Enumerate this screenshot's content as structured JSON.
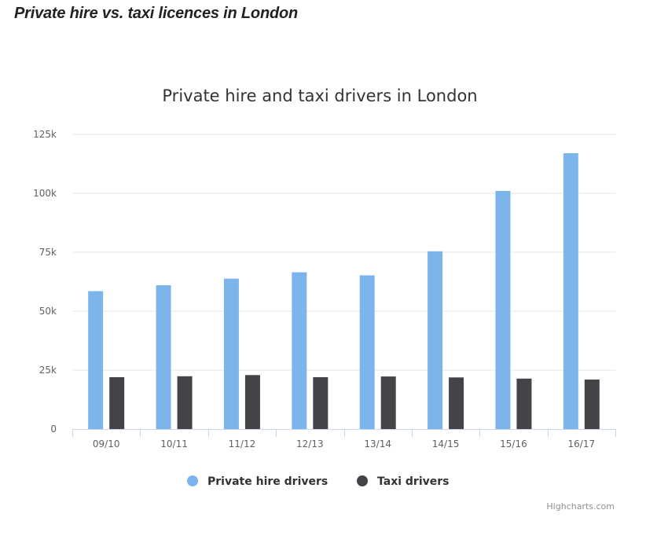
{
  "page": {
    "heading": "Private hire vs. taxi licences in London"
  },
  "chart_data": {
    "type": "bar",
    "title": "Private hire and taxi drivers in London",
    "categories": [
      "09/10",
      "10/11",
      "11/12",
      "12/13",
      "13/14",
      "14/15",
      "15/16",
      "16/17"
    ],
    "series": [
      {
        "name": "Private hire drivers",
        "color": "#7cb5ec",
        "values": [
          58500,
          61000,
          63800,
          66500,
          65200,
          75400,
          101000,
          117000
        ]
      },
      {
        "name": "Taxi drivers",
        "color": "#434348",
        "values": [
          22000,
          22400,
          22900,
          22000,
          22300,
          21900,
          21400,
          21000
        ]
      }
    ],
    "ylim": [
      0,
      125000
    ],
    "yticks": [
      {
        "value": 0,
        "label": "0"
      },
      {
        "value": 25000,
        "label": "25k"
      },
      {
        "value": 50000,
        "label": "50k"
      },
      {
        "value": 75000,
        "label": "75k"
      },
      {
        "value": 100000,
        "label": "100k"
      },
      {
        "value": 125000,
        "label": "125k"
      }
    ],
    "xlabel": "",
    "ylabel": "",
    "grid": true,
    "legend": "bottom-center",
    "credits": "Highcharts.com"
  }
}
